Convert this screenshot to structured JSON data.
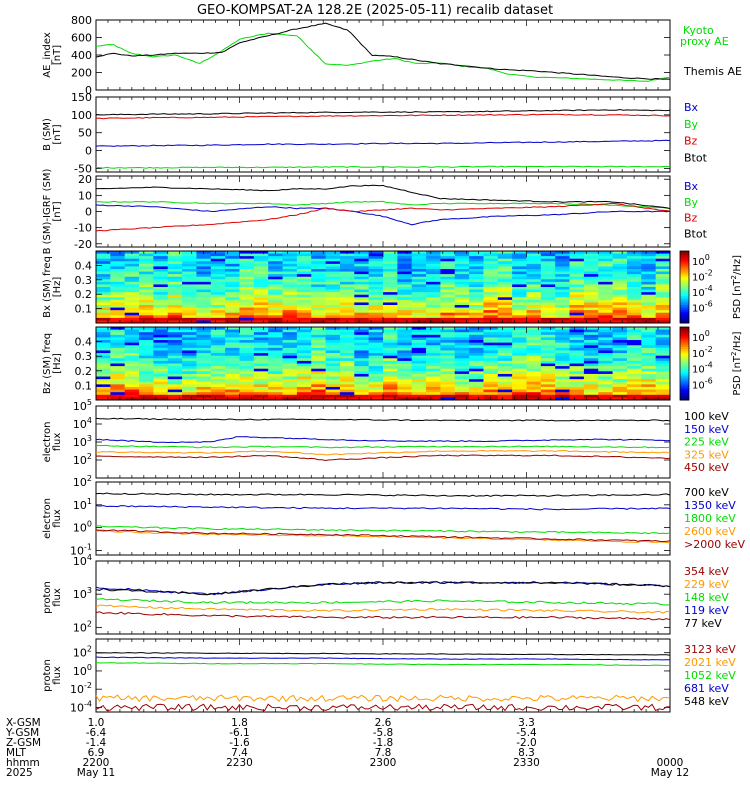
{
  "title": "GEO-KOMPSAT-2A 128.2E (2025-05-11) recalib dataset",
  "colors": {
    "black": "#000000",
    "blue": "#0000cc",
    "green": "#00dd00",
    "red": "#dd0000",
    "orange": "#ff9900",
    "darkred": "#990000"
  },
  "chart_data": [
    {
      "id": "ae",
      "type": "line",
      "ylabel": "AE_index [nT]",
      "ylim": [
        0,
        800
      ],
      "yticks": [
        "800",
        "600",
        "400",
        "200",
        "0"
      ],
      "legend": [
        "Kyoto proxy AE",
        "Themis AE"
      ],
      "series": [
        {
          "name": "Kyoto proxy AE",
          "color": "#00dd00",
          "x": [
            0,
            0.03,
            0.06,
            0.1,
            0.14,
            0.18,
            0.22,
            0.25,
            0.3,
            0.35,
            0.4,
            0.44,
            0.48,
            0.52,
            0.56,
            0.6,
            0.64,
            0.68,
            0.72,
            0.76,
            0.8,
            0.84,
            0.88,
            0.92,
            0.96,
            1
          ],
          "y": [
            500,
            520,
            420,
            380,
            400,
            300,
            450,
            580,
            650,
            620,
            300,
            280,
            330,
            360,
            300,
            310,
            270,
            250,
            180,
            150,
            140,
            130,
            120,
            110,
            100,
            150
          ]
        },
        {
          "name": "Themis AE",
          "color": "#000000",
          "x": [
            0,
            0.03,
            0.06,
            0.1,
            0.14,
            0.18,
            0.22,
            0.25,
            0.3,
            0.35,
            0.4,
            0.44,
            0.48,
            0.52,
            0.56,
            0.6,
            0.64,
            0.68,
            0.72,
            0.76,
            0.8,
            0.84,
            0.88,
            0.92,
            0.96,
            1
          ],
          "y": [
            380,
            420,
            390,
            400,
            420,
            420,
            430,
            540,
            620,
            700,
            760,
            680,
            400,
            380,
            340,
            300,
            280,
            250,
            230,
            220,
            200,
            180,
            160,
            140,
            130,
            120
          ]
        }
      ]
    },
    {
      "id": "bsm",
      "type": "line",
      "ylabel": "B (SM) [nT]",
      "ylim": [
        -60,
        150
      ],
      "yticks": [
        "150",
        "100",
        "50",
        "0",
        "-50"
      ],
      "legend": [
        "Bx",
        "By",
        "Bz",
        "Btot"
      ],
      "series": [
        {
          "name": "Bx",
          "color": "#0000cc",
          "x": [
            0,
            0.1,
            0.2,
            0.3,
            0.4,
            0.5,
            0.6,
            0.7,
            0.8,
            0.9,
            1
          ],
          "y": [
            12,
            14,
            15,
            18,
            18,
            20,
            20,
            22,
            24,
            26,
            28
          ]
        },
        {
          "name": "By",
          "color": "#00dd00",
          "x": [
            0,
            0.1,
            0.2,
            0.3,
            0.4,
            0.5,
            0.6,
            0.7,
            0.8,
            0.9,
            1
          ],
          "y": [
            -48,
            -48,
            -47,
            -47,
            -46,
            -46,
            -46,
            -45,
            -45,
            -45,
            -45
          ]
        },
        {
          "name": "Bz",
          "color": "#dd0000",
          "x": [
            0,
            0.1,
            0.2,
            0.3,
            0.4,
            0.5,
            0.6,
            0.7,
            0.8,
            0.9,
            1
          ],
          "y": [
            90,
            92,
            93,
            95,
            97,
            98,
            99,
            100,
            101,
            100,
            98
          ]
        },
        {
          "name": "Btot",
          "color": "#000000",
          "x": [
            0,
            0.1,
            0.2,
            0.3,
            0.4,
            0.5,
            0.6,
            0.7,
            0.8,
            0.9,
            1
          ],
          "y": [
            100,
            102,
            103,
            105,
            107,
            108,
            108,
            110,
            112,
            114,
            112
          ]
        }
      ]
    },
    {
      "id": "bigrf",
      "type": "line",
      "ylabel": "B (SM)-IGRF (SM) [nT]",
      "ylim": [
        -22,
        22
      ],
      "yticks": [
        "20",
        "10",
        "0",
        "-10",
        "-20"
      ],
      "legend": [
        "Bx",
        "By",
        "Bz",
        "Btot"
      ],
      "series": [
        {
          "name": "Bx",
          "color": "#0000cc",
          "x": [
            0,
            0.1,
            0.2,
            0.3,
            0.35,
            0.4,
            0.45,
            0.5,
            0.55,
            0.6,
            0.7,
            0.8,
            0.9,
            1
          ],
          "y": [
            4,
            3,
            0,
            3,
            2,
            2,
            0,
            -3,
            -8,
            -5,
            -3,
            -2,
            0,
            0
          ]
        },
        {
          "name": "By",
          "color": "#00dd00",
          "x": [
            0,
            0.1,
            0.2,
            0.3,
            0.35,
            0.4,
            0.45,
            0.5,
            0.55,
            0.6,
            0.7,
            0.8,
            0.9,
            1
          ],
          "y": [
            6,
            6,
            5,
            5,
            4,
            5,
            6,
            6,
            4,
            5,
            5,
            5,
            4,
            2
          ]
        },
        {
          "name": "Bz",
          "color": "#dd0000",
          "x": [
            0,
            0.1,
            0.2,
            0.3,
            0.35,
            0.4,
            0.45,
            0.5,
            0.55,
            0.6,
            0.7,
            0.8,
            0.9,
            1
          ],
          "y": [
            -12,
            -10,
            -8,
            -5,
            -2,
            2,
            0,
            1,
            2,
            1,
            2,
            3,
            5,
            0
          ]
        },
        {
          "name": "Btot",
          "color": "#000000",
          "x": [
            0,
            0.1,
            0.2,
            0.3,
            0.35,
            0.4,
            0.45,
            0.5,
            0.55,
            0.6,
            0.7,
            0.8,
            0.9,
            1
          ],
          "y": [
            14,
            15,
            14,
            13,
            14,
            14,
            16,
            16,
            12,
            8,
            7,
            6,
            6,
            2
          ]
        }
      ]
    },
    {
      "id": "bx-spec",
      "type": "heatmap",
      "ylabel": "Bx (SM) freq [Hz]",
      "yticks": [
        "0.4",
        "0.3",
        "0.2",
        "0.1"
      ],
      "colorbar_label": "PSD [nT^2/Hz]",
      "colorbar_ticks": [
        "10^0",
        "10^-2",
        "10^-4",
        "10^-6"
      ]
    },
    {
      "id": "bz-spec",
      "type": "heatmap",
      "ylabel": "Bz (SM) freq [Hz]",
      "yticks": [
        "0.4",
        "0.3",
        "0.2",
        "0.1"
      ],
      "colorbar_label": "PSD [nT^2/Hz]",
      "colorbar_ticks": [
        "10^0",
        "10^-2",
        "10^-4",
        "10^-6"
      ]
    },
    {
      "id": "e-flux-1",
      "type": "line",
      "log": true,
      "ylabel": "electron flux",
      "ylim_log": [
        1,
        5
      ],
      "yticks": [
        "10^5",
        "10^4",
        "10^3",
        "10^2"
      ],
      "legend": [
        "100 keV",
        "150 keV",
        "225 keV",
        "325 keV",
        "450 keV"
      ],
      "series": [
        {
          "name": "100 keV",
          "color": "#000000",
          "x": [
            0,
            0.2,
            0.4,
            0.6,
            0.8,
            1
          ],
          "y": [
            4.3,
            4.25,
            4.25,
            4.2,
            4.2,
            4.2
          ]
        },
        {
          "name": "150 keV",
          "color": "#0000cc",
          "x": [
            0,
            0.1,
            0.2,
            0.25,
            0.35,
            0.45,
            0.55,
            0.7,
            0.85,
            1
          ],
          "y": [
            3.15,
            3.0,
            3.0,
            3.3,
            3.2,
            3.1,
            3.05,
            3.05,
            3.15,
            3.1
          ]
        },
        {
          "name": "225 keV",
          "color": "#00dd00",
          "x": [
            0,
            0.2,
            0.3,
            0.4,
            0.6,
            0.8,
            1
          ],
          "y": [
            2.8,
            2.7,
            2.75,
            2.7,
            2.75,
            2.75,
            2.7
          ]
        },
        {
          "name": "325 keV",
          "color": "#ff9900",
          "x": [
            0,
            0.2,
            0.3,
            0.4,
            0.6,
            0.8,
            1
          ],
          "y": [
            2.45,
            2.4,
            2.5,
            2.3,
            2.5,
            2.5,
            2.4
          ]
        },
        {
          "name": "450 keV",
          "color": "#990000",
          "x": [
            0,
            0.2,
            0.3,
            0.4,
            0.6,
            0.8,
            1
          ],
          "y": [
            2.2,
            2.15,
            2.25,
            2.0,
            2.25,
            2.25,
            2.1
          ]
        }
      ]
    },
    {
      "id": "e-flux-2",
      "type": "line",
      "log": true,
      "ylabel": "electron flux",
      "ylim_log": [
        -1.2,
        2
      ],
      "yticks": [
        "10^2",
        "10^1",
        "10^0",
        "10^-1"
      ],
      "legend": [
        "700 keV",
        "1350 keV",
        "1800 keV",
        "2600 keV",
        ">2000 keV"
      ],
      "series": [
        {
          "name": "700 keV",
          "color": "#000000",
          "x": [
            0,
            0.2,
            0.4,
            0.6,
            0.8,
            1
          ],
          "y": [
            1.5,
            1.45,
            1.45,
            1.4,
            1.4,
            1.45
          ]
        },
        {
          "name": "1350 keV",
          "color": "#0000cc",
          "x": [
            0,
            0.2,
            0.4,
            0.6,
            0.8,
            1
          ],
          "y": [
            0.95,
            0.9,
            0.85,
            0.85,
            0.8,
            0.85
          ]
        },
        {
          "name": "1800 keV",
          "color": "#00dd00",
          "x": [
            0,
            0.2,
            0.4,
            0.6,
            0.8,
            1
          ],
          "y": [
            0.05,
            -0.05,
            -0.1,
            -0.15,
            -0.2,
            -0.25
          ]
        },
        {
          "name": "2600 keV",
          "color": "#ff9900",
          "x": [
            0,
            0.2,
            0.4,
            0.6,
            0.8,
            1
          ],
          "y": [
            -0.15,
            -0.3,
            -0.35,
            -0.45,
            -0.55,
            -0.65
          ]
        },
        {
          "name": ">2000 keV",
          "color": "#990000",
          "x": [
            0,
            0.2,
            0.4,
            0.6,
            0.8,
            1
          ],
          "y": [
            -0.1,
            -0.25,
            -0.3,
            -0.4,
            -0.5,
            -0.6
          ]
        }
      ]
    },
    {
      "id": "p-flux-1",
      "type": "line",
      "log": true,
      "ylabel": "proton flux",
      "ylim_log": [
        1.8,
        4
      ],
      "yticks": [
        "10^4",
        "10^3",
        "10^2"
      ],
      "legend": [
        "354 keV",
        "229 keV",
        "148 keV",
        "119 keV",
        "77 keV"
      ],
      "series": [
        {
          "name": "354 keV",
          "color": "#990000",
          "x": [
            0,
            0.2,
            0.4,
            0.6,
            0.8,
            1
          ],
          "y": [
            2.45,
            2.35,
            2.3,
            2.3,
            2.3,
            2.25
          ]
        },
        {
          "name": "229 keV",
          "color": "#ff9900",
          "x": [
            0,
            0.2,
            0.4,
            0.6,
            0.8,
            1
          ],
          "y": [
            2.65,
            2.55,
            2.5,
            2.55,
            2.5,
            2.45
          ]
        },
        {
          "name": "148 keV",
          "color": "#00dd00",
          "x": [
            0,
            0.2,
            0.4,
            0.6,
            0.8,
            1
          ],
          "y": [
            2.85,
            2.75,
            2.75,
            2.8,
            2.75,
            2.7
          ]
        },
        {
          "name": "119 keV",
          "color": "#0000cc",
          "x": [
            0,
            0.2,
            0.4,
            0.5,
            0.6,
            0.8,
            1
          ],
          "y": [
            3.2,
            3.0,
            3.3,
            3.35,
            3.35,
            3.35,
            3.25
          ]
        },
        {
          "name": "77 keV",
          "color": "#000000",
          "x": [
            0,
            0.2,
            0.4,
            0.5,
            0.6,
            0.8,
            1
          ],
          "y": [
            3.15,
            3.0,
            3.3,
            3.35,
            3.35,
            3.35,
            3.25
          ]
        }
      ]
    },
    {
      "id": "p-flux-2",
      "type": "line",
      "log": true,
      "ylabel": "proton flux",
      "ylim_log": [
        -4.5,
        3.5
      ],
      "yticks": [
        "10^2",
        "10^0",
        "10^-2",
        "10^-4"
      ],
      "legend": [
        "3123 keV",
        "2021 keV",
        "1052 keV",
        "681 keV",
        "548 keV"
      ],
      "series": [
        {
          "name": "3123 keV",
          "color": "#990000",
          "x": [
            0,
            0.2,
            0.4,
            0.6,
            0.8,
            1
          ],
          "y": [
            -4.0,
            -4.0,
            -4.0,
            -4.0,
            -4.0,
            -4.0
          ]
        },
        {
          "name": "2021 keV",
          "color": "#ff9900",
          "x": [
            0,
            0.2,
            0.4,
            0.6,
            0.8,
            1
          ],
          "y": [
            -3.0,
            -3.0,
            -3.0,
            -3.0,
            -3.0,
            -3.0
          ]
        },
        {
          "name": "1052 keV",
          "color": "#00dd00",
          "x": [
            0,
            0.2,
            0.4,
            0.6,
            0.8,
            1
          ],
          "y": [
            0.9,
            0.8,
            0.8,
            0.7,
            0.7,
            0.6
          ]
        },
        {
          "name": "681 keV",
          "color": "#0000cc",
          "x": [
            0,
            0.2,
            0.4,
            0.6,
            0.8,
            1
          ],
          "y": [
            1.5,
            1.4,
            1.4,
            1.3,
            1.3,
            1.2
          ]
        },
        {
          "name": "548 keV",
          "color": "#000000",
          "x": [
            0,
            0.2,
            0.4,
            0.6,
            0.8,
            1
          ],
          "y": [
            2.0,
            1.95,
            1.9,
            1.85,
            1.8,
            1.75
          ]
        }
      ]
    }
  ],
  "footer": {
    "labels": [
      "X-GSM",
      "Y-GSM",
      "Z-GSM",
      "MLT",
      "hhmm",
      "2025"
    ],
    "columns": [
      {
        "values": [
          "1.0",
          "-6.4",
          "-1.4",
          "6.9",
          "2200",
          "May 11"
        ]
      },
      {
        "values": [
          "1.8",
          "-6.1",
          "-1.6",
          "7.4",
          "2230",
          ""
        ]
      },
      {
        "values": [
          "2.6",
          "-5.8",
          "-1.8",
          "7.8",
          "2300",
          ""
        ]
      },
      {
        "values": [
          "3.3",
          "-5.4",
          "-2.0",
          "8.3",
          "2330",
          ""
        ]
      },
      {
        "values": [
          "",
          "",
          "",
          "",
          "0000",
          "May 12"
        ]
      }
    ]
  }
}
